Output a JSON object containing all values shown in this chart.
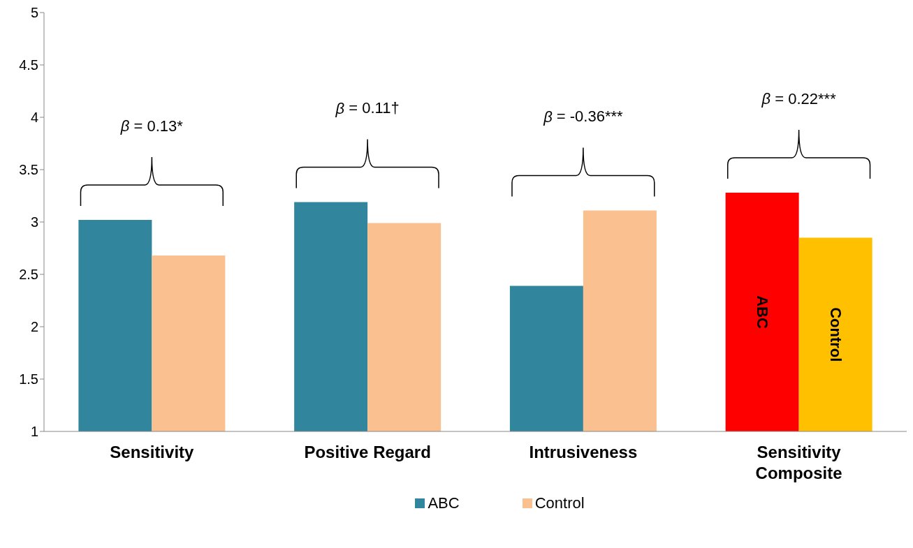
{
  "chart_data": {
    "type": "bar",
    "categories": [
      "Sensitivity",
      "Positive Regard",
      "Intrusiveness",
      "Sensitivity Composite"
    ],
    "series": [
      {
        "name": "ABC",
        "color": "#31859c",
        "colors": [
          "#31859c",
          "#31859c",
          "#31859c",
          "#ff0000"
        ],
        "values": [
          3.02,
          3.19,
          2.39,
          3.28
        ],
        "value_labels": [
          null,
          null,
          null,
          "ABC"
        ]
      },
      {
        "name": "Control",
        "color": "#fac090",
        "colors": [
          "#fac090",
          "#fac090",
          "#fac090",
          "#ffc000"
        ],
        "values": [
          2.68,
          2.99,
          3.11,
          2.85
        ],
        "value_labels": [
          null,
          null,
          null,
          "Control"
        ]
      }
    ],
    "ylim": [
      1,
      5
    ],
    "yticks": [
      1,
      1.5,
      2,
      2.5,
      3,
      3.5,
      4,
      4.5,
      5
    ],
    "annotations": [
      "β = 0.13*",
      "β = 0.11†",
      "β = -0.36***",
      "β = 0.22***"
    ],
    "legend": "bottom"
  }
}
